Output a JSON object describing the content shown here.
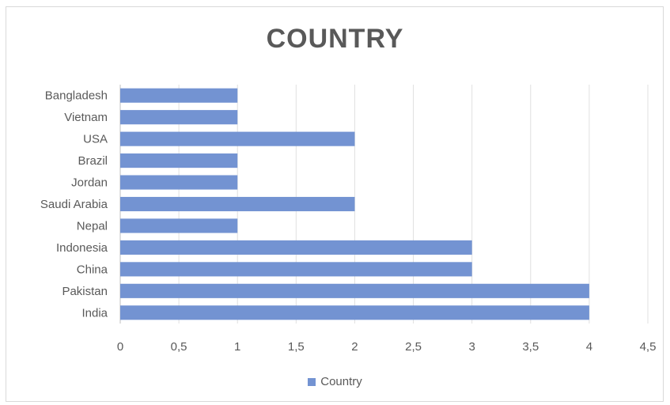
{
  "chart_data": {
    "type": "bar",
    "orientation": "horizontal",
    "title": "COUNTRY",
    "categories": [
      "India",
      "Pakistan",
      "China",
      "Indonesia",
      "Nepal",
      "Saudi Arabia",
      "Jordan",
      "Brazil",
      "USA",
      "Vietnam",
      "Bangladesh"
    ],
    "series": [
      {
        "name": "Country",
        "color": "#7393d2",
        "values": [
          4,
          4,
          3,
          3,
          1,
          2,
          1,
          1,
          2,
          1,
          1
        ]
      }
    ],
    "xlim": [
      0,
      4.5
    ],
    "x_ticks": [
      "0",
      "0,5",
      "1",
      "1,5",
      "2",
      "2,5",
      "3",
      "3,5",
      "4",
      "4,5"
    ],
    "grid": "vertical",
    "legend_position": "bottom"
  }
}
